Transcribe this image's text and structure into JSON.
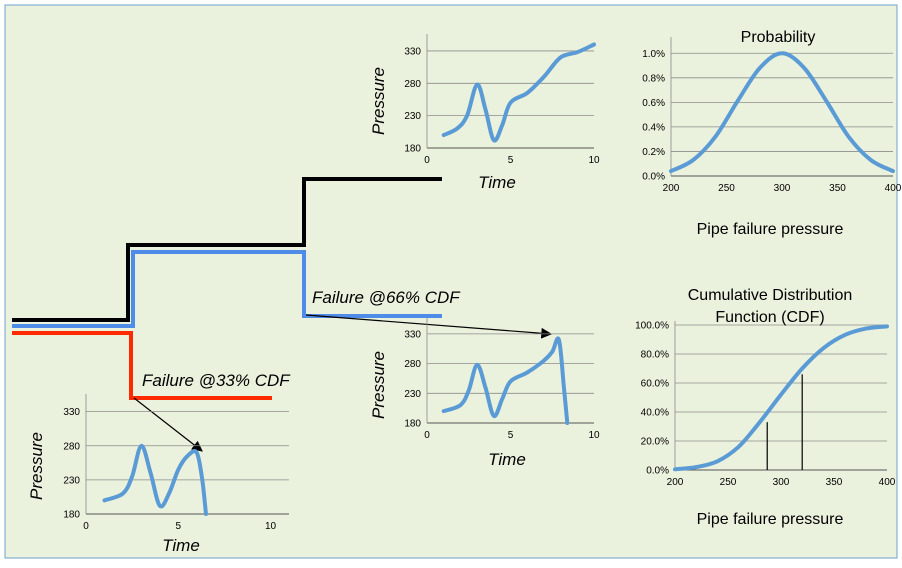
{
  "labels": {
    "failure_66": "Failure @66% CDF",
    "failure_33": "Failure @33% CDF",
    "pressure": "Pressure",
    "time": "Time",
    "pipe_failure_pressure": "Pipe failure pressure",
    "prob_title": "Probability",
    "cdf_title_line1": "Cumulative Distribution",
    "cdf_title_line2": "Function (CDF)"
  },
  "colors": {
    "background": "#eaf1dd",
    "border": "#6fa3c9",
    "curve": "#5b9bd5",
    "black_line": "#000000",
    "blue_line": "#4f8ce8",
    "red_line": "#ff2a00"
  },
  "chart_data": [
    {
      "id": "pressure-top",
      "type": "line",
      "title": "",
      "xlabel": "Time",
      "ylabel": "Pressure",
      "xlim": [
        0,
        10
      ],
      "ylim": [
        180,
        350
      ],
      "xticks": [
        0,
        5,
        10
      ],
      "yticks": [
        180,
        230,
        280,
        330
      ],
      "tick_labels_x": [
        "0",
        "5",
        "10"
      ],
      "tick_labels_y": [
        "180",
        "230",
        "280",
        "330"
      ],
      "series": [
        {
          "x": [
            1,
            1.8,
            2.4,
            3,
            3.5,
            4,
            4.5,
            5,
            6,
            7,
            8,
            9,
            10
          ],
          "y": [
            200,
            210,
            230,
            278,
            240,
            192,
            215,
            250,
            265,
            290,
            320,
            328,
            340
          ]
        }
      ],
      "grid": "horizontal"
    },
    {
      "id": "pressure-mid",
      "type": "line",
      "title": "",
      "xlabel": "Time",
      "ylabel": "Pressure",
      "xlim": [
        0,
        10
      ],
      "ylim": [
        180,
        350
      ],
      "xticks": [
        0,
        5,
        10
      ],
      "yticks": [
        180,
        230,
        280,
        330
      ],
      "tick_labels_x": [
        "0",
        "5",
        "10"
      ],
      "tick_labels_y": [
        "180",
        "230",
        "280",
        "330"
      ],
      "series": [
        {
          "x": [
            1,
            2,
            2.5,
            3,
            3.5,
            4,
            4.5,
            5,
            6,
            7,
            7.5,
            7.9,
            8.2,
            8.4
          ],
          "y": [
            200,
            210,
            235,
            278,
            240,
            192,
            220,
            250,
            265,
            285,
            300,
            320,
            240,
            180
          ]
        }
      ],
      "grid": "horizontal"
    },
    {
      "id": "pressure-bottom",
      "type": "line",
      "title": "",
      "xlabel": "Time",
      "ylabel": "Pressure",
      "xlim": [
        0,
        11
      ],
      "ylim": [
        180,
        350
      ],
      "xticks": [
        0,
        5,
        10
      ],
      "yticks": [
        180,
        230,
        280,
        330
      ],
      "tick_labels_x": [
        "0",
        "5",
        "10"
      ],
      "tick_labels_y": [
        "180",
        "230",
        "280",
        "330"
      ],
      "series": [
        {
          "x": [
            1,
            2,
            2.5,
            3,
            3.5,
            4,
            4.5,
            5,
            5.5,
            6,
            6.3,
            6.5
          ],
          "y": [
            200,
            210,
            235,
            280,
            240,
            192,
            210,
            245,
            265,
            270,
            230,
            180
          ]
        }
      ],
      "grid": "horizontal"
    },
    {
      "id": "probability",
      "type": "line",
      "title": "Probability",
      "xlabel": "Pipe failure pressure",
      "ylabel": "",
      "xlim": [
        200,
        400
      ],
      "ylim": [
        0,
        1.1
      ],
      "xticks": [
        200,
        250,
        300,
        350,
        400
      ],
      "yticks": [
        0,
        0.2,
        0.4,
        0.6,
        0.8,
        1.0
      ],
      "tick_labels_x": [
        "200",
        "250",
        "300",
        "350",
        "400"
      ],
      "tick_labels_y": [
        "0.0%",
        "0.2%",
        "0.4%",
        "0.6%",
        "0.8%",
        "1.0%"
      ],
      "series": [
        {
          "x": [
            200,
            220,
            240,
            260,
            280,
            300,
            320,
            340,
            360,
            380,
            400
          ],
          "y": [
            0.04,
            0.13,
            0.32,
            0.61,
            0.88,
            1.0,
            0.88,
            0.61,
            0.32,
            0.13,
            0.04
          ]
        }
      ],
      "grid": "horizontal"
    },
    {
      "id": "cdf",
      "type": "line",
      "title": "Cumulative Distribution Function (CDF)",
      "xlabel": "Pipe failure pressure",
      "ylabel": "",
      "xlim": [
        200,
        400
      ],
      "ylim": [
        0,
        100
      ],
      "xticks": [
        200,
        250,
        300,
        350,
        400
      ],
      "yticks": [
        0,
        20,
        40,
        60,
        80,
        100
      ],
      "tick_labels_x": [
        "200",
        "250",
        "300",
        "350",
        "400"
      ],
      "tick_labels_y": [
        "0.0%",
        "20.0%",
        "40.0%",
        "60.0%",
        "80.0%",
        "100.0%"
      ],
      "series": [
        {
          "x": [
            200,
            220,
            240,
            260,
            280,
            300,
            320,
            340,
            360,
            380,
            400
          ],
          "y": [
            0.5,
            2,
            6,
            16,
            33,
            52,
            70,
            84,
            93,
            97.5,
            99
          ]
        }
      ],
      "markers": [
        {
          "x": 287,
          "y": 33
        },
        {
          "x": 320,
          "y": 66
        }
      ],
      "grid": "horizontal"
    }
  ]
}
